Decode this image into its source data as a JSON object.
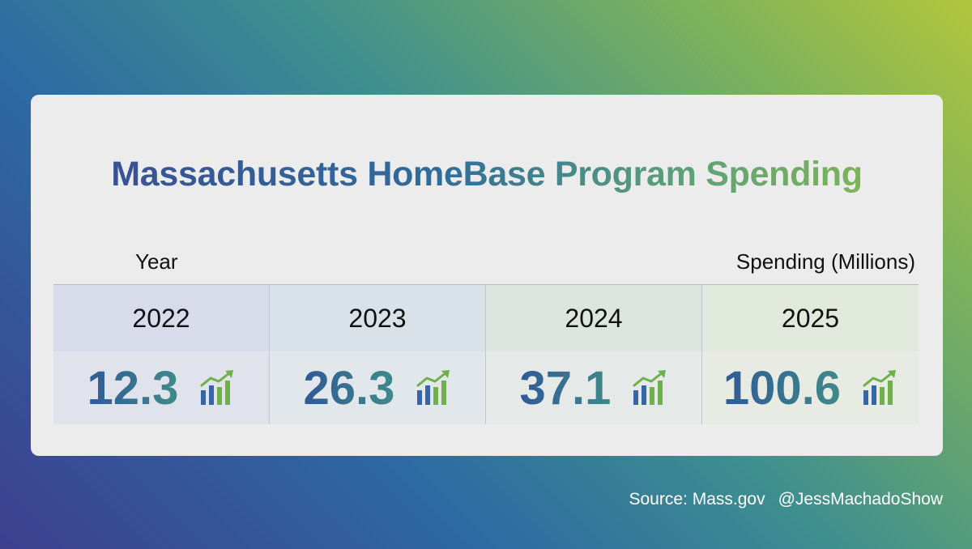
{
  "chart_data": {
    "type": "table",
    "title": "Massachusetts HomeBase Program Spending",
    "xlabel": "Year",
    "ylabel": "Spending (Millions)",
    "categories": [
      "2022",
      "2023",
      "2024",
      "2025"
    ],
    "values": [
      12.3,
      26.3,
      37.1,
      100.6
    ],
    "value_labels": [
      "12.3",
      "26.3",
      "37.1",
      "100.6"
    ],
    "icon": "bar-chart-trend-up-icon"
  },
  "footer": {
    "source": "Source: Mass.gov",
    "handle": "@JessMachadoShow"
  },
  "colors": {
    "title_start": "#3b4a93",
    "title_end": "#8cbb4c",
    "icon_blue": "#3566a8",
    "icon_green": "#6fb04a"
  }
}
